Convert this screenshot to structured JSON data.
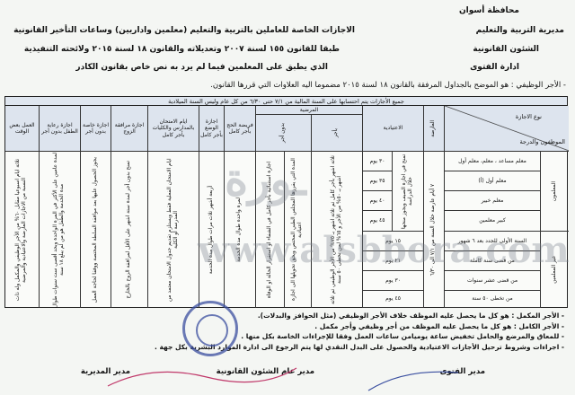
{
  "authority": {
    "governorate": "محافظة أسوان",
    "directorate": "مديرية التربية والتعليم",
    "department": "الشئون القانونية",
    "office": "ادارة الفتوى"
  },
  "title": {
    "line1": "الاجازات الخاصة للعاملين بالتربية والتعليم (معلمين واداريين) وساعات التأخير القانونية",
    "line2": "طبقا للقانون ١٥٥ لسنة ٢٠٠٧ وتعديلاته والقانون ١٨ لسنة ٢٠١٥ ولائحته التنفيذية",
    "line3": "الذي يطبق على المعلمين فيما لم يرد به نص خاص بقانون الكادر"
  },
  "intro": "- الأجر الوظيفي : هو الموضح بالجداول المرفقة بالقانون ١٨ لسنة ٢٠١٥ مضموما اليه العلاوات التي قررها القانون.",
  "table": {
    "banner": "جميع الأجازات يتم احتسابها على السنة المالية من ٧/١ حتى ٦/٣٠ من كل عام وليس السنة الميلادية",
    "corner_top": "نوع الاجازة",
    "corner_bottom": "الموظفون والدرجة",
    "headers": {
      "casual": "العارضة",
      "regular": "الاعتيادية",
      "sick": "المرضية",
      "sick_paid": "بأجر",
      "sick_unpaid": "بدون أجر",
      "hajj": "فريضة الحج بأجر كامل",
      "maternity": "اجازة الوضع بأجر كامل",
      "exams": "ايام الامتحان بالمدارس والكليات بأجر كامل",
      "spouse": "اجازة مرافقة الزوج",
      "special": "اجازة خاصة بدون أجر",
      "childcare": "اجازة رعاية الطفل بدون أجر",
      "parttime": "العمل بعض الوقت"
    },
    "groups": [
      "المعلمون",
      "غير المعلمين"
    ],
    "ranks": [
      "معلم مساعد ، معلم، معلم أول",
      "معلم أول (أ)",
      "معلم خبير",
      "كبير معلمين",
      "السنة الأولى للجدد بعد ٦ شهور",
      "من قضى سنة كاملة",
      "من قضى عشر سنوات",
      "من تخطى ٥٠ سنة"
    ],
    "regular_days": [
      "٣٠ يوم",
      "٣٥ يوم",
      "٤٠ يوم",
      "٤٥ يوم",
      "١٥ يوم",
      "٢١ يوم",
      "٣٠ يوم",
      "٤٥ يوم"
    ],
    "regular_note": "تمنح في اجازة الصيف ويجوز منحها خلال الدراسة",
    "casual": "٧ أيام عارضة خلال السنة من ٧/١ الى ٦/٣٠",
    "sick_paid": "ثلاثة اشهر بأجر كامل ثم ثلاثة اشهر بـ ٧٥% من الأجر الوظيفي ثم ثلاثة اشهر بـ ٥٠% من الأجر و ٦٥% لمن تخطى ٥٠ سنة",
    "sick_unpaid": "المدة التي يقررها المجلس الطبي المختص ويحق تحويلها الى اجازة اعتيادية",
    "sick_extra": "اجازة استثنائية بأجر كامل في الشفاء او استقرار الحالة او الوفاة",
    "hajj": "لمرة واحدة طوال مدة الخدمة",
    "maternity": "أربعة أشهر ثلاث مرات طوال مدة الخدمة",
    "exams": "ايام الامتحان الفعلية فقط ويستلزم تقديم جدول الامتحان معتمد من المدرسة أو الكلية",
    "spouse": "تمنح بدون أجر لمدة ستة اشهر على الأقل لمرافقة الزوج بالخارج",
    "special": "يجوز الحصول عليها بعد موافقة السلطة المختصة ووفقا لحاجة العمل",
    "childcare": "لمدة عامين على الأكثر في المرة الواحدة وبحد أقصى ست سنوات طوال مدة الخدمة والطفل هو من لم يبلغ ١٨ سنة",
    "parttime": "ثلاثة ايام اسبوعيا مقابل ٦٠% من الأجر الوظيفي والمكمل وله ذات النسبة من الاجازات العارضة والاعتيادية والمرضية"
  },
  "notes": [
    "- الأجر المكمل : هو كل ما يحصل عليه الموظف خلاف الأجر الوظيفي (مثل الحوافز والبدلات).",
    "- الأجر الكامل : هو كل ما يحصل عليه الموظف من أجر وظيفي وأجر مكمل .",
    "- للمعاق والمرضع والحامل تخفيض ساعة يوميامن ساعات العمل وفقا للإجراءات الخاصة بكل منها .",
    "- اجراءات وشروط ترحيل الأجازات الاعتيادية والحصول على البدل النقدي لها يتم الرجوع الى ادارة الموارد البشرية بكل جهة ."
  ],
  "signatures": [
    "مدير الفتوى",
    "مدير عام الشئون القانونية",
    "مدير المديرية"
  ],
  "watermark": "www.alsbbora.com",
  "colors": {
    "header_fill": "#dde4ee",
    "stamp": "#3b4fa0"
  }
}
